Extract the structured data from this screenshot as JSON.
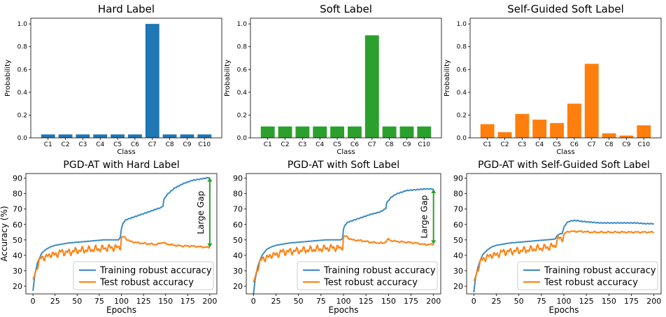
{
  "chart_data": [
    {
      "type": "bar",
      "title": "Hard Label",
      "categories": [
        "C1",
        "C2",
        "C3",
        "C4",
        "C5",
        "C6",
        "C7",
        "C8",
        "C9",
        "C10"
      ],
      "values": [
        0.03,
        0.03,
        0.03,
        0.03,
        0.03,
        0.03,
        1.0,
        0.03,
        0.03,
        0.03
      ],
      "color": "#1f77b4",
      "xlabel": "Class",
      "ylabel": "Probability",
      "ylim": [
        0,
        1.05
      ],
      "yticks": [
        "0.0",
        "0.2",
        "0.4",
        "0.6",
        "0.8",
        "1.0"
      ]
    },
    {
      "type": "bar",
      "title": "Soft Label",
      "categories": [
        "C1",
        "C2",
        "C3",
        "C4",
        "C5",
        "C6",
        "C7",
        "C8",
        "C9",
        "C10"
      ],
      "values": [
        0.1,
        0.1,
        0.1,
        0.1,
        0.1,
        0.1,
        0.9,
        0.1,
        0.1,
        0.1
      ],
      "color": "#2ca02c",
      "xlabel": "Class",
      "ylabel": "Probability",
      "ylim": [
        0,
        1.05
      ],
      "yticks": [
        "0.0",
        "0.2",
        "0.4",
        "0.6",
        "0.8",
        "1.0"
      ]
    },
    {
      "type": "bar",
      "title": "Self-Guided Soft Label",
      "categories": [
        "C1",
        "C2",
        "C3",
        "C4",
        "C5",
        "C6",
        "C7",
        "C8",
        "C9",
        "C10"
      ],
      "values": [
        0.12,
        0.05,
        0.21,
        0.16,
        0.13,
        0.3,
        0.65,
        0.04,
        0.02,
        0.11
      ],
      "color": "#ff7f0e",
      "xlabel": "Class",
      "ylabel": "Probability",
      "ylim": [
        0,
        1.05
      ],
      "yticks": [
        "0.0",
        "0.2",
        "0.4",
        "0.6",
        "0.8",
        "1.0"
      ]
    },
    {
      "type": "line",
      "title": "PGD-AT with Hard Label",
      "xlabel": "Epochs",
      "ylabel": "Accuracy (%)",
      "xlim": [
        -8,
        208
      ],
      "ylim": [
        15,
        93
      ],
      "xticks": [
        "0",
        "25",
        "50",
        "75",
        "100",
        "125",
        "150",
        "175",
        "200"
      ],
      "yticks": [
        "20",
        "30",
        "40",
        "50",
        "60",
        "70",
        "80",
        "90"
      ],
      "annotation": {
        "text": "Large Gap",
        "x": 200,
        "y_top": 90.5,
        "y_bottom": 45
      },
      "series": [
        {
          "name": "Training robust accuracy",
          "color": "#3b8bc2",
          "x": [
            0,
            2,
            5,
            8,
            10,
            15,
            20,
            25,
            30,
            40,
            50,
            60,
            70,
            80,
            90,
            97,
            99,
            100,
            102,
            105,
            110,
            120,
            130,
            140,
            145,
            147,
            148,
            150,
            152,
            155,
            160,
            170,
            180,
            190,
            200
          ],
          "y": [
            17,
            27,
            35,
            39,
            41.5,
            44,
            45.5,
            46.5,
            47,
            48,
            48.5,
            49,
            49.5,
            50,
            50,
            50,
            52,
            57,
            61,
            63,
            64,
            66,
            68,
            70,
            71,
            72,
            76,
            78,
            79.5,
            81,
            83.5,
            86.5,
            88.5,
            89.5,
            90.5
          ]
        },
        {
          "name": "Test robust accuracy",
          "color": "#ff7f0e",
          "x": [
            0,
            2,
            5,
            8,
            10,
            15,
            20,
            25,
            30,
            40,
            50,
            60,
            70,
            80,
            90,
            97,
            99,
            100,
            103,
            106,
            110,
            120,
            130,
            140,
            147,
            150,
            155,
            160,
            170,
            180,
            190,
            200
          ],
          "y": [
            22,
            28,
            33,
            37,
            39,
            38.5,
            41,
            40,
            42,
            42,
            43,
            43.5,
            44,
            44.5,
            45,
            45,
            46,
            51.5,
            52,
            50.5,
            49,
            48,
            47.5,
            47,
            48.5,
            47.5,
            47,
            46.5,
            46,
            46,
            45.5,
            45
          ]
        }
      ],
      "legend": "bottom-right"
    },
    {
      "type": "line",
      "title": "PGD-AT with Soft Label",
      "xlabel": "Epochs",
      "ylabel": "",
      "xlim": [
        -8,
        208
      ],
      "ylim": [
        15,
        93
      ],
      "xticks": [
        "0",
        "25",
        "50",
        "75",
        "100",
        "125",
        "150",
        "175",
        "200"
      ],
      "yticks": [
        "20",
        "30",
        "40",
        "50",
        "60",
        "70",
        "80",
        "90"
      ],
      "annotation": {
        "text": "Large Gap",
        "x": 200,
        "y_top": 83,
        "y_bottom": 47
      },
      "series": [
        {
          "name": "Training robust accuracy",
          "color": "#3b8bc2",
          "x": [
            0,
            2,
            5,
            8,
            10,
            15,
            20,
            25,
            30,
            40,
            50,
            60,
            70,
            80,
            90,
            97,
            99,
            100,
            102,
            105,
            110,
            120,
            130,
            140,
            145,
            147,
            148,
            150,
            152,
            155,
            160,
            170,
            180,
            190,
            200
          ],
          "y": [
            15,
            25,
            33,
            38,
            40.5,
            44,
            45.5,
            46.5,
            47,
            48,
            48.5,
            49,
            49.5,
            50,
            50,
            50,
            51,
            57,
            60,
            61.5,
            62.5,
            64.5,
            66.5,
            68,
            69.5,
            70.5,
            74,
            75.5,
            77,
            78.5,
            80,
            82,
            82.5,
            83,
            83
          ]
        },
        {
          "name": "Test robust accuracy",
          "color": "#ff7f0e",
          "x": [
            0,
            2,
            5,
            8,
            10,
            15,
            20,
            25,
            30,
            40,
            50,
            60,
            70,
            80,
            90,
            97,
            99,
            100,
            103,
            106,
            110,
            120,
            130,
            140,
            145,
            148,
            150,
            153,
            160,
            170,
            180,
            190,
            200
          ],
          "y": [
            20,
            27,
            32,
            36,
            38.5,
            38,
            40.5,
            40,
            42,
            42.5,
            43,
            43.5,
            44,
            44.5,
            45,
            44.5,
            46,
            52,
            52.5,
            51,
            50,
            49.5,
            48.5,
            48,
            48,
            49.5,
            50.5,
            49.5,
            49,
            48.5,
            48,
            47,
            47
          ]
        }
      ],
      "legend": "bottom-right"
    },
    {
      "type": "line",
      "title": "PGD-AT with Self-Guided Soft Label",
      "xlabel": "Epochs",
      "ylabel": "",
      "xlim": [
        -8,
        208
      ],
      "ylim": [
        15,
        93
      ],
      "xticks": [
        "0",
        "25",
        "50",
        "75",
        "100",
        "125",
        "150",
        "175",
        "200"
      ],
      "yticks": [
        "20",
        "30",
        "40",
        "50",
        "60",
        "70",
        "80",
        "90"
      ],
      "series": [
        {
          "name": "Training robust accuracy",
          "color": "#3b8bc2",
          "x": [
            0,
            2,
            5,
            8,
            10,
            15,
            20,
            25,
            30,
            40,
            50,
            60,
            70,
            80,
            90,
            93,
            96,
            98,
            100,
            103,
            106,
            110,
            115,
            120,
            130,
            140,
            150,
            160,
            170,
            180,
            190,
            200
          ],
          "y": [
            16,
            26,
            33,
            38,
            40.5,
            43.5,
            45.5,
            46.5,
            47,
            48,
            48.5,
            49,
            49.5,
            50,
            50.5,
            53,
            54,
            54,
            58,
            61,
            62,
            62.5,
            62.5,
            62,
            61.5,
            61,
            61,
            61,
            61,
            61,
            60.5,
            60.5
          ]
        },
        {
          "name": "Test robust accuracy",
          "color": "#ff7f0e",
          "x": [
            0,
            2,
            5,
            8,
            10,
            15,
            20,
            25,
            30,
            40,
            50,
            60,
            70,
            80,
            90,
            93,
            96,
            98,
            100,
            103,
            106,
            110,
            120,
            130,
            140,
            150,
            160,
            170,
            180,
            190,
            200
          ],
          "y": [
            21,
            27,
            32,
            36,
            38,
            38.5,
            40.5,
            40,
            42,
            42.5,
            43,
            43.5,
            44.5,
            45,
            46,
            50.5,
            51,
            50.5,
            53.5,
            55,
            55.5,
            55.5,
            55.5,
            55,
            55,
            55,
            55,
            55,
            55,
            55,
            55
          ]
        }
      ],
      "legend": "bottom-right"
    }
  ]
}
